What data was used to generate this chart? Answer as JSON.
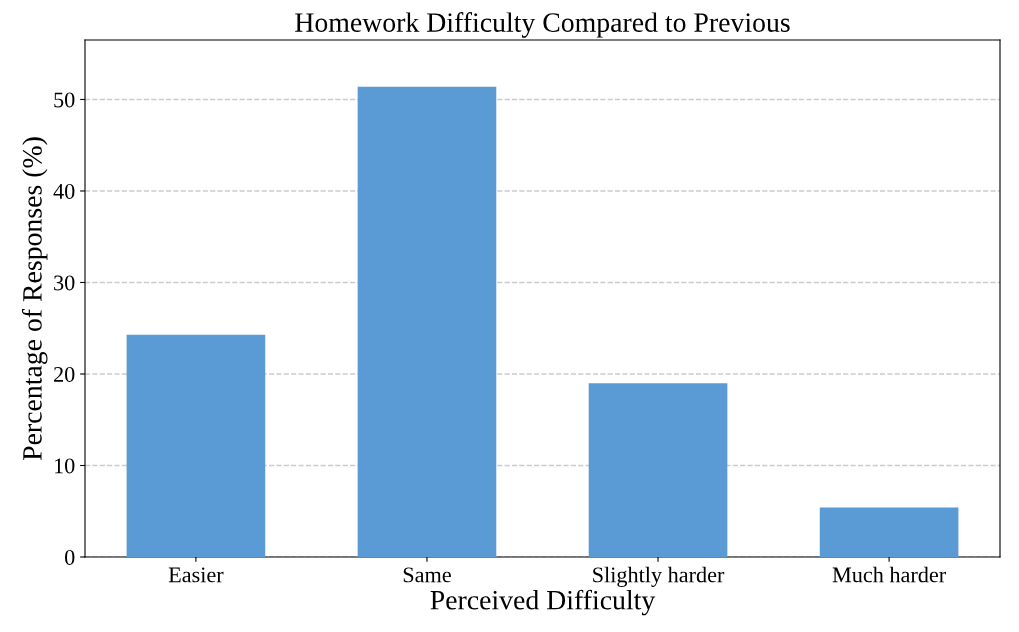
{
  "chart_data": {
    "type": "bar",
    "title": "Homework Difficulty Compared to Previous",
    "xlabel": "Perceived Difficulty",
    "ylabel": "Percentage of Responses (%)",
    "categories": [
      "Easier",
      "Same",
      "Slightly harder",
      "Much harder"
    ],
    "values": [
      24.3,
      51.4,
      19.0,
      5.4
    ],
    "color": "#5b9bd5",
    "ylim": [
      0,
      56.5
    ],
    "yticks": [
      0,
      10,
      20,
      30,
      40,
      50
    ],
    "grid": "y"
  }
}
